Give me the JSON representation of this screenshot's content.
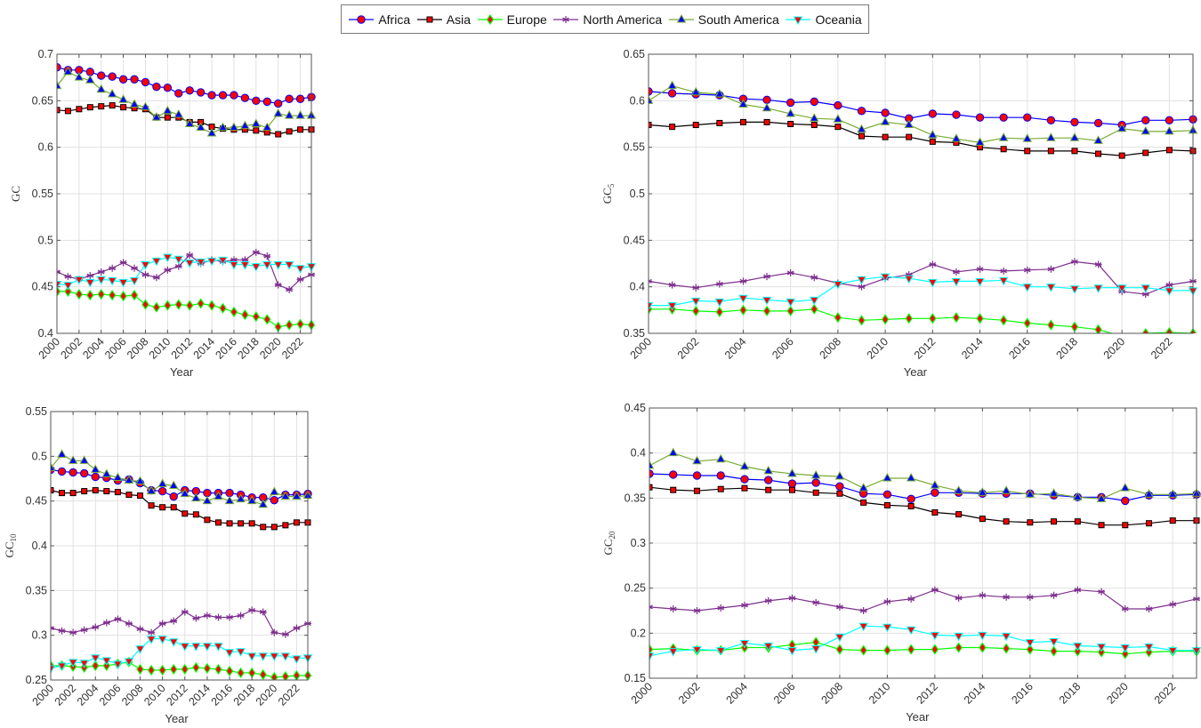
{
  "legend": {
    "placement": "top-center",
    "entries": [
      {
        "name": "Africa",
        "color": "#0000ff",
        "marker": "circle",
        "marker_fill": "#ff0000"
      },
      {
        "name": "Asia",
        "color": "#000000",
        "marker": "square",
        "marker_fill": "#ff0000"
      },
      {
        "name": "Europe",
        "color": "#00ff00",
        "marker": "diamond",
        "marker_fill": "#ff0000"
      },
      {
        "name": "North America",
        "color": "#7e2f8e",
        "marker": "asterisk",
        "marker_fill": "#7e2f8e"
      },
      {
        "name": "South America",
        "color": "#77ac30",
        "marker": "triangle-up",
        "marker_fill": "#0000ff"
      },
      {
        "name": "Oceania",
        "color": "#00ffff",
        "marker": "triangle-down",
        "marker_fill": "#ff0000"
      }
    ]
  },
  "chart_data": [
    {
      "type": "line",
      "title": "",
      "xlabel": "Year",
      "ylabel": "GC",
      "ylabel_sub": "",
      "x": [
        2000,
        2001,
        2002,
        2003,
        2004,
        2005,
        2006,
        2007,
        2008,
        2009,
        2010,
        2011,
        2012,
        2013,
        2014,
        2015,
        2016,
        2017,
        2018,
        2019,
        2020,
        2021,
        2022,
        2023
      ],
      "xticks": [
        "2000",
        "2002",
        "2004",
        "2006",
        "2008",
        "2010",
        "2012",
        "2014",
        "2016",
        "2018",
        "2020",
        "2022"
      ],
      "xlim": [
        2000,
        2023
      ],
      "ylim": [
        0.4,
        0.7
      ],
      "yticks": [
        "0.4",
        "0.45",
        "0.5",
        "0.55",
        "0.6",
        "0.65",
        "0.7"
      ],
      "grid": true,
      "series": [
        {
          "name": "Africa",
          "values": [
            0.686,
            0.683,
            0.683,
            0.681,
            0.677,
            0.676,
            0.673,
            0.673,
            0.67,
            0.665,
            0.664,
            0.658,
            0.661,
            0.659,
            0.656,
            0.656,
            0.656,
            0.653,
            0.65,
            0.649,
            0.647,
            0.652,
            0.652,
            0.654
          ]
        },
        {
          "name": "Asia",
          "values": [
            0.64,
            0.639,
            0.641,
            0.643,
            0.644,
            0.645,
            0.643,
            0.642,
            0.641,
            0.632,
            0.632,
            0.632,
            0.627,
            0.627,
            0.622,
            0.62,
            0.619,
            0.619,
            0.618,
            0.616,
            0.614,
            0.617,
            0.619,
            0.619
          ]
        },
        {
          "name": "Europe",
          "values": [
            0.445,
            0.445,
            0.442,
            0.441,
            0.442,
            0.441,
            0.44,
            0.441,
            0.431,
            0.428,
            0.43,
            0.431,
            0.43,
            0.432,
            0.43,
            0.427,
            0.423,
            0.42,
            0.418,
            0.415,
            0.407,
            0.409,
            0.41,
            0.409
          ]
        },
        {
          "name": "North America",
          "values": [
            0.466,
            0.461,
            0.458,
            0.462,
            0.466,
            0.47,
            0.476,
            0.47,
            0.463,
            0.46,
            0.468,
            0.472,
            0.484,
            0.475,
            0.479,
            0.477,
            0.479,
            0.479,
            0.487,
            0.483,
            0.452,
            0.447,
            0.458,
            0.463
          ]
        },
        {
          "name": "South America",
          "values": [
            0.666,
            0.681,
            0.675,
            0.672,
            0.662,
            0.657,
            0.651,
            0.646,
            0.643,
            0.632,
            0.639,
            0.635,
            0.625,
            0.621,
            0.615,
            0.621,
            0.621,
            0.623,
            0.625,
            0.621,
            0.636,
            0.634,
            0.634,
            0.634
          ]
        },
        {
          "name": "Oceania",
          "values": [
            0.453,
            0.452,
            0.458,
            0.455,
            0.458,
            0.457,
            0.455,
            0.457,
            0.474,
            0.478,
            0.482,
            0.48,
            0.476,
            0.477,
            0.478,
            0.479,
            0.474,
            0.474,
            0.472,
            0.474,
            0.474,
            0.474,
            0.47,
            0.472
          ]
        }
      ]
    },
    {
      "type": "line",
      "title": "",
      "xlabel": "Year",
      "ylabel": "GC",
      "ylabel_sub": "5",
      "x": [
        2000,
        2001,
        2002,
        2003,
        2004,
        2005,
        2006,
        2007,
        2008,
        2009,
        2010,
        2011,
        2012,
        2013,
        2014,
        2015,
        2016,
        2017,
        2018,
        2019,
        2020,
        2021,
        2022,
        2023
      ],
      "xticks": [
        "2000",
        "2002",
        "2004",
        "2006",
        "2008",
        "2010",
        "2012",
        "2014",
        "2016",
        "2018",
        "2020",
        "2022"
      ],
      "xlim": [
        2000,
        2023
      ],
      "ylim": [
        0.35,
        0.65
      ],
      "yticks": [
        "0.35",
        "0.4",
        "0.45",
        "0.5",
        "0.55",
        "0.6",
        "0.65"
      ],
      "grid": true,
      "series": [
        {
          "name": "Africa",
          "values": [
            0.61,
            0.608,
            0.607,
            0.606,
            0.602,
            0.601,
            0.598,
            0.599,
            0.595,
            0.589,
            0.587,
            0.581,
            0.586,
            0.585,
            0.582,
            0.582,
            0.582,
            0.579,
            0.577,
            0.576,
            0.574,
            0.579,
            0.579,
            0.58
          ]
        },
        {
          "name": "Asia",
          "values": [
            0.574,
            0.572,
            0.574,
            0.576,
            0.577,
            0.577,
            0.575,
            0.574,
            0.572,
            0.562,
            0.561,
            0.561,
            0.556,
            0.555,
            0.55,
            0.548,
            0.546,
            0.546,
            0.546,
            0.543,
            0.541,
            0.544,
            0.547,
            0.546
          ]
        },
        {
          "name": "Europe",
          "values": [
            0.376,
            0.376,
            0.374,
            0.373,
            0.375,
            0.374,
            0.374,
            0.376,
            0.367,
            0.364,
            0.365,
            0.366,
            0.366,
            0.367,
            0.366,
            0.364,
            0.361,
            0.359,
            0.357,
            0.354,
            0.347,
            0.35,
            0.351,
            0.35
          ]
        },
        {
          "name": "North America",
          "values": [
            0.406,
            0.402,
            0.399,
            0.403,
            0.406,
            0.411,
            0.415,
            0.41,
            0.404,
            0.4,
            0.409,
            0.413,
            0.424,
            0.416,
            0.419,
            0.417,
            0.418,
            0.419,
            0.427,
            0.424,
            0.395,
            0.392,
            0.402,
            0.406
          ]
        },
        {
          "name": "South America",
          "values": [
            0.6,
            0.616,
            0.609,
            0.607,
            0.596,
            0.592,
            0.586,
            0.581,
            0.58,
            0.569,
            0.577,
            0.574,
            0.563,
            0.559,
            0.555,
            0.56,
            0.559,
            0.56,
            0.56,
            0.557,
            0.57,
            0.567,
            0.567,
            0.568
          ]
        },
        {
          "name": "Oceania",
          "values": [
            0.38,
            0.38,
            0.385,
            0.384,
            0.388,
            0.386,
            0.384,
            0.386,
            0.403,
            0.408,
            0.411,
            0.409,
            0.405,
            0.406,
            0.406,
            0.407,
            0.4,
            0.4,
            0.398,
            0.399,
            0.399,
            0.399,
            0.396,
            0.396
          ]
        }
      ]
    },
    {
      "type": "line",
      "title": "",
      "xlabel": "Year",
      "ylabel": "GC",
      "ylabel_sub": "10",
      "x": [
        2000,
        2001,
        2002,
        2003,
        2004,
        2005,
        2006,
        2007,
        2008,
        2009,
        2010,
        2011,
        2012,
        2013,
        2014,
        2015,
        2016,
        2017,
        2018,
        2019,
        2020,
        2021,
        2022,
        2023
      ],
      "xticks": [
        "2000",
        "2002",
        "2004",
        "2006",
        "2008",
        "2010",
        "2012",
        "2014",
        "2016",
        "2018",
        "2020",
        "2022"
      ],
      "xlim": [
        2000,
        2023
      ],
      "ylim": [
        0.25,
        0.55
      ],
      "yticks": [
        "0.25",
        "0.3",
        "0.35",
        "0.4",
        "0.45",
        "0.5",
        "0.55"
      ],
      "grid": true,
      "series": [
        {
          "name": "Africa",
          "values": [
            0.485,
            0.483,
            0.482,
            0.481,
            0.477,
            0.476,
            0.473,
            0.474,
            0.47,
            0.462,
            0.461,
            0.455,
            0.462,
            0.461,
            0.459,
            0.459,
            0.459,
            0.457,
            0.454,
            0.454,
            0.451,
            0.457,
            0.457,
            0.458
          ]
        },
        {
          "name": "Asia",
          "values": [
            0.462,
            0.459,
            0.459,
            0.461,
            0.462,
            0.461,
            0.46,
            0.457,
            0.456,
            0.445,
            0.443,
            0.443,
            0.436,
            0.435,
            0.429,
            0.426,
            0.425,
            0.425,
            0.425,
            0.421,
            0.421,
            0.423,
            0.426,
            0.426
          ]
        },
        {
          "name": "Europe",
          "values": [
            0.266,
            0.266,
            0.265,
            0.264,
            0.266,
            0.266,
            0.268,
            0.27,
            0.262,
            0.261,
            0.261,
            0.262,
            0.262,
            0.264,
            0.263,
            0.262,
            0.26,
            0.258,
            0.258,
            0.256,
            0.253,
            0.254,
            0.255,
            0.255
          ]
        },
        {
          "name": "North America",
          "values": [
            0.308,
            0.305,
            0.303,
            0.306,
            0.309,
            0.314,
            0.318,
            0.313,
            0.307,
            0.303,
            0.313,
            0.316,
            0.326,
            0.319,
            0.322,
            0.32,
            0.32,
            0.322,
            0.328,
            0.326,
            0.303,
            0.301,
            0.308,
            0.313
          ]
        },
        {
          "name": "South America",
          "values": [
            0.487,
            0.502,
            0.495,
            0.495,
            0.485,
            0.48,
            0.476,
            0.473,
            0.472,
            0.461,
            0.469,
            0.467,
            0.458,
            0.453,
            0.45,
            0.455,
            0.45,
            0.452,
            0.45,
            0.446,
            0.46,
            0.455,
            0.455,
            0.456
          ]
        },
        {
          "name": "Oceania",
          "values": [
            0.263,
            0.266,
            0.27,
            0.269,
            0.275,
            0.272,
            0.268,
            0.271,
            0.285,
            0.296,
            0.296,
            0.293,
            0.288,
            0.288,
            0.288,
            0.288,
            0.281,
            0.282,
            0.277,
            0.277,
            0.277,
            0.277,
            0.274,
            0.275
          ]
        }
      ]
    },
    {
      "type": "line",
      "title": "",
      "xlabel": "Year",
      "ylabel": "GC",
      "ylabel_sub": "20",
      "x": [
        2000,
        2001,
        2002,
        2003,
        2004,
        2005,
        2006,
        2007,
        2008,
        2009,
        2010,
        2011,
        2012,
        2013,
        2014,
        2015,
        2016,
        2017,
        2018,
        2019,
        2020,
        2021,
        2022,
        2023
      ],
      "xticks": [
        "2000",
        "2002",
        "2004",
        "2006",
        "2008",
        "2010",
        "2012",
        "2014",
        "2016",
        "2018",
        "2020",
        "2022"
      ],
      "xlim": [
        2000,
        2023
      ],
      "ylim": [
        0.15,
        0.45
      ],
      "yticks": [
        "0.15",
        "0.2",
        "0.25",
        "0.3",
        "0.35",
        "0.4",
        "0.45"
      ],
      "grid": true,
      "series": [
        {
          "name": "Africa",
          "values": [
            0.377,
            0.376,
            0.375,
            0.375,
            0.371,
            0.37,
            0.366,
            0.367,
            0.363,
            0.355,
            0.354,
            0.349,
            0.356,
            0.356,
            0.355,
            0.355,
            0.355,
            0.353,
            0.351,
            0.351,
            0.347,
            0.353,
            0.353,
            0.354
          ]
        },
        {
          "name": "Asia",
          "values": [
            0.362,
            0.359,
            0.358,
            0.36,
            0.361,
            0.359,
            0.359,
            0.356,
            0.355,
            0.345,
            0.342,
            0.341,
            0.334,
            0.332,
            0.327,
            0.324,
            0.323,
            0.324,
            0.324,
            0.32,
            0.32,
            0.322,
            0.325,
            0.325
          ]
        },
        {
          "name": "Europe",
          "values": [
            0.182,
            0.183,
            0.181,
            0.181,
            0.184,
            0.184,
            0.187,
            0.19,
            0.182,
            0.181,
            0.181,
            0.182,
            0.182,
            0.184,
            0.184,
            0.183,
            0.182,
            0.18,
            0.18,
            0.179,
            0.177,
            0.179,
            0.18,
            0.18
          ]
        },
        {
          "name": "North America",
          "values": [
            0.229,
            0.227,
            0.225,
            0.228,
            0.231,
            0.236,
            0.239,
            0.234,
            0.229,
            0.225,
            0.235,
            0.238,
            0.248,
            0.239,
            0.242,
            0.24,
            0.24,
            0.242,
            0.248,
            0.246,
            0.227,
            0.227,
            0.232,
            0.238
          ]
        },
        {
          "name": "South America",
          "values": [
            0.386,
            0.4,
            0.391,
            0.393,
            0.385,
            0.38,
            0.377,
            0.375,
            0.374,
            0.361,
            0.372,
            0.372,
            0.364,
            0.358,
            0.356,
            0.358,
            0.354,
            0.355,
            0.351,
            0.349,
            0.361,
            0.354,
            0.354,
            0.355
          ]
        },
        {
          "name": "Oceania",
          "values": [
            0.175,
            0.18,
            0.182,
            0.181,
            0.189,
            0.186,
            0.181,
            0.183,
            0.196,
            0.208,
            0.207,
            0.204,
            0.198,
            0.197,
            0.198,
            0.197,
            0.19,
            0.191,
            0.186,
            0.185,
            0.184,
            0.185,
            0.181,
            0.181
          ]
        }
      ]
    }
  ]
}
